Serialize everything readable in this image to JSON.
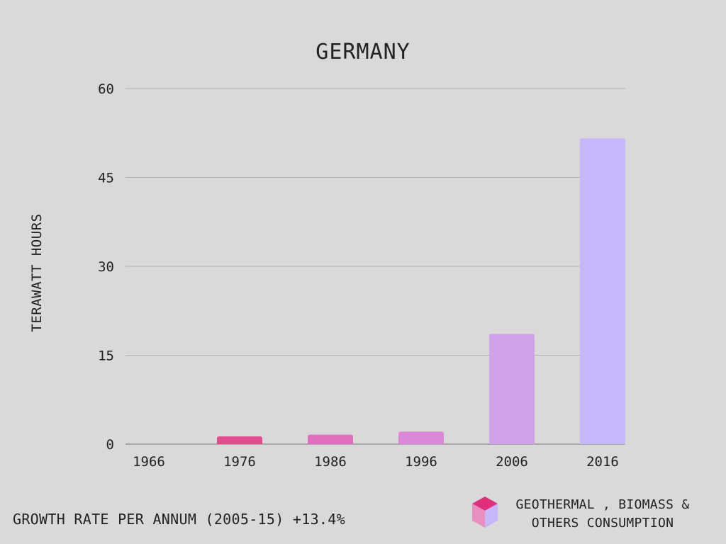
{
  "chart_data": {
    "type": "bar",
    "title": "GERMANY",
    "xlabel": "",
    "ylabel": "TERAWATT HOURS",
    "categories": [
      "1966",
      "1976",
      "1986",
      "1996",
      "2006",
      "2016"
    ],
    "series": [
      {
        "name": "GEOTHERMAL , BIOMASS & OTHERS CONSUMPTION",
        "values": [
          0,
          1.3,
          1.6,
          2.1,
          18.6,
          51.6
        ]
      }
    ],
    "ylim": [
      0,
      60
    ],
    "yticks": [
      0,
      15,
      30,
      45,
      60
    ],
    "grid": true,
    "legend_position": "bottom-right",
    "bar_colors": [
      "#e34b8f",
      "#e34b8f",
      "#e06fbe",
      "#dc88d8",
      "#cfa2ea",
      "#c6b7fb"
    ],
    "grid_color": "#b3b3b3",
    "axis_color": "#999999"
  },
  "footer": {
    "growth_rate": "GROWTH RATE PER ANNUM (2005-15) +13.4%"
  },
  "legend": {
    "line1": "GEOTHERMAL , BIOMASS &",
    "line2": "OTHERS CONSUMPTION",
    "icon": "cube-icon",
    "icon_colors": {
      "top": "#e0307a",
      "left": "#e98fc0",
      "right": "#c6b7fb"
    }
  }
}
